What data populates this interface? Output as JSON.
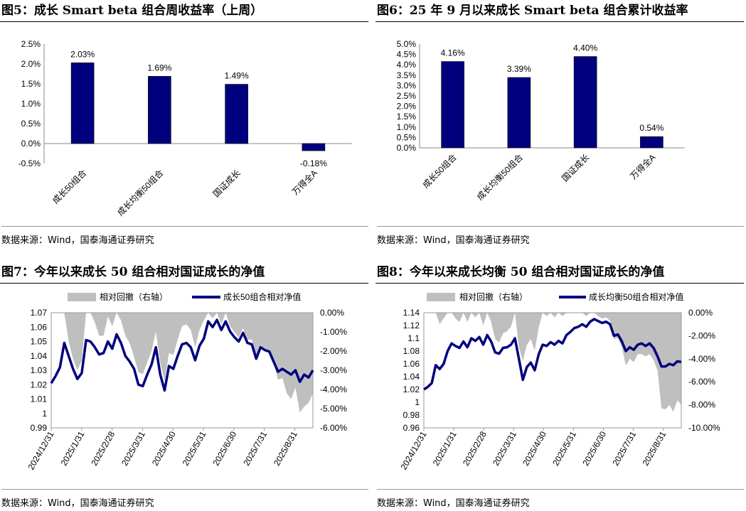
{
  "chart_data": [
    {
      "type": "bar",
      "title": "图5：成长 Smart beta 组合周收益率（上周）",
      "categories": [
        "成长50组合",
        "成长均衡50组合",
        "国证成长",
        "万得全A"
      ],
      "values": [
        2.03,
        1.69,
        1.49,
        -0.18
      ],
      "labels": [
        "2.03%",
        "1.69%",
        "1.49%",
        "-0.18%"
      ],
      "ylim": [
        -0.5,
        2.5
      ],
      "yticks": [
        "-0.5%",
        "0.0%",
        "0.5%",
        "1.0%",
        "1.5%",
        "2.0%",
        "2.5%"
      ],
      "color": "#00007F",
      "source": "数据来源：Wind，国泰海通证券研究"
    },
    {
      "type": "bar",
      "title": "图6：25 年 9 月以来成长 Smart beta 组合累计收益率",
      "categories": [
        "成长50组合",
        "成长均衡50组合",
        "国证成长",
        "万得全A"
      ],
      "values": [
        4.16,
        3.39,
        4.4,
        0.54
      ],
      "labels": [
        "4.16%",
        "3.39%",
        "4.40%",
        "0.54%"
      ],
      "ylim": [
        0,
        5
      ],
      "yticks": [
        "0.0%",
        "0.5%",
        "1.0%",
        "1.5%",
        "2.0%",
        "2.5%",
        "3.0%",
        "3.5%",
        "4.0%",
        "4.5%",
        "5.0%"
      ],
      "color": "#00007F",
      "source": "数据来源：Wind，国泰海通证券研究"
    },
    {
      "type": "line",
      "title": "图7：今年以来成长 50 组合相对国证成长的净值",
      "legend": [
        "相对回撤（右轴）",
        "成长50组合相对净值"
      ],
      "x_ticks": [
        "2024/12/31",
        "2025/1/31",
        "2025/2/28",
        "2025/3/31",
        "2025/4/30",
        "2025/5/31",
        "2025/6/30",
        "2025/7/31",
        "2025/8/31"
      ],
      "ylim": [
        0.99,
        1.07
      ],
      "yticks": [
        "0.99",
        "1",
        "1.01",
        "1.02",
        "1.03",
        "1.04",
        "1.05",
        "1.06",
        "1.07"
      ],
      "y2lim": [
        -6,
        0
      ],
      "y2ticks": [
        "-6.00%",
        "-5.00%",
        "-4.00%",
        "-3.00%",
        "-2.00%",
        "-1.00%",
        "0.00%"
      ],
      "line": [
        1.021,
        1.026,
        1.032,
        1.049,
        1.04,
        1.031,
        1.024,
        1.028,
        1.051,
        1.05,
        1.046,
        1.041,
        1.042,
        1.05,
        1.045,
        1.055,
        1.049,
        1.04,
        1.036,
        1.031,
        1.02,
        1.019,
        1.027,
        1.034,
        1.046,
        1.027,
        1.016,
        1.033,
        1.031,
        1.04,
        1.048,
        1.049,
        1.046,
        1.037,
        1.047,
        1.052,
        1.064,
        1.06,
        1.065,
        1.058,
        1.064,
        1.057,
        1.053,
        1.05,
        1.056,
        1.049,
        1.048,
        1.038,
        1.046,
        1.044,
        1.043,
        1.036,
        1.029,
        1.031,
        1.029,
        1.027,
        1.03,
        1.022,
        1.027,
        1.025,
        1.03
      ],
      "drawdown": [
        0,
        0,
        0,
        0,
        -1.5,
        -2.4,
        -3.0,
        -2.5,
        0,
        0,
        -0.5,
        -1.2,
        -1.2,
        -0.2,
        -0.7,
        0,
        -0.4,
        -1.2,
        -1.6,
        -2.3,
        -3.1,
        -3.2,
        -2.6,
        -2.0,
        -1.0,
        -2.6,
        -3.6,
        -2.1,
        -2.2,
        -1.4,
        -0.7,
        -0.6,
        -0.9,
        -1.8,
        -0.9,
        -0.4,
        0,
        -0.3,
        0,
        -0.6,
        0,
        -0.7,
        -1.0,
        -1.3,
        -0.8,
        -1.4,
        -1.4,
        -2.4,
        -1.7,
        -1.9,
        -2.0,
        -2.6,
        -3.5,
        -3.4,
        -4.2,
        -4.5,
        -3.9,
        -5.2,
        -4.9,
        -4.7,
        -4.2
      ],
      "source": "数据来源：Wind，国泰海通证券研究"
    },
    {
      "type": "line",
      "title": "图8：今年以来成长均衡 50 组合相对国证成长的净值",
      "legend": [
        "相对回撤（右轴）",
        "成长均衡50组合相对净值"
      ],
      "x_ticks": [
        "2024/12/31",
        "2025/1/31",
        "2025/2/28",
        "2025/3/31",
        "2025/4/30",
        "2025/5/31",
        "2025/6/30",
        "2025/7/31",
        "2025/8/31"
      ],
      "ylim": [
        0.96,
        1.14
      ],
      "yticks": [
        "0.96",
        "0.98",
        "1",
        "1.02",
        "1.04",
        "1.06",
        "1.08",
        "1.1",
        "1.12",
        "1.14"
      ],
      "y2lim": [
        -10,
        0
      ],
      "y2ticks": [
        "-10.00%",
        "-8.00%",
        "-6.00%",
        "-4.00%",
        "-2.00%",
        "0.00%"
      ],
      "line": [
        1.02,
        1.024,
        1.03,
        1.058,
        1.052,
        1.06,
        1.08,
        1.092,
        1.088,
        1.085,
        1.095,
        1.086,
        1.1,
        1.096,
        1.102,
        1.09,
        1.105,
        1.095,
        1.078,
        1.076,
        1.085,
        1.086,
        1.09,
        1.1,
        1.068,
        1.035,
        1.055,
        1.062,
        1.05,
        1.075,
        1.09,
        1.088,
        1.094,
        1.09,
        1.096,
        1.092,
        1.105,
        1.11,
        1.116,
        1.118,
        1.122,
        1.118,
        1.126,
        1.13,
        1.127,
        1.124,
        1.126,
        1.122,
        1.104,
        1.106,
        1.095,
        1.08,
        1.086,
        1.082,
        1.09,
        1.092,
        1.088,
        1.092,
        1.085,
        1.072,
        1.056,
        1.056,
        1.06,
        1.058,
        1.064,
        1.063
      ],
      "drawdown": [
        0,
        0,
        0,
        0,
        -1.0,
        -0.5,
        0,
        0,
        -0.5,
        -0.8,
        0,
        -0.8,
        0,
        -0.4,
        0,
        -1.1,
        0,
        -0.8,
        -2.3,
        -2.6,
        -1.8,
        -1.6,
        -1.2,
        0,
        -3.0,
        -4.2,
        -2.8,
        -2.3,
        -3.3,
        -1.3,
        0,
        -0.3,
        0,
        -0.4,
        0,
        -0.3,
        0,
        0,
        0,
        0,
        0,
        -0.3,
        0,
        0,
        -0.3,
        -0.5,
        -0.4,
        -0.7,
        -2.3,
        -2.2,
        -3.0,
        -4.6,
        -4.0,
        -4.3,
        -3.6,
        -3.6,
        -3.8,
        -3.6,
        -4.1,
        -5.0,
        -8.3,
        -8.4,
        -8.0,
        -8.6,
        -7.6,
        -8.0
      ],
      "source": "数据来源：Wind，国泰海通证券研究"
    }
  ]
}
